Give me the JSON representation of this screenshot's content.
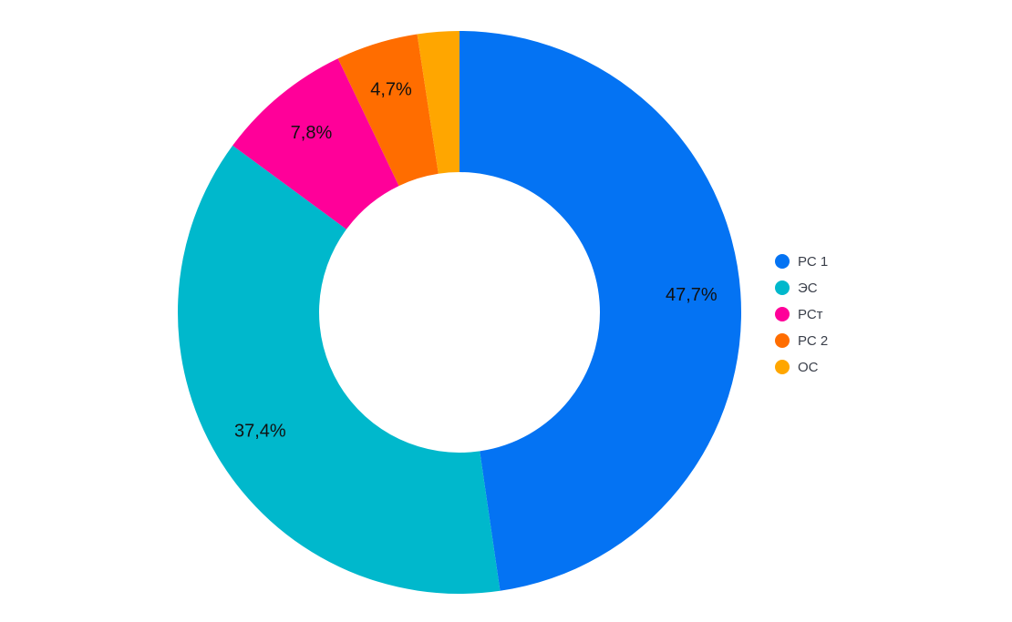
{
  "chart_data": {
    "type": "donut",
    "categories": [
      "РС 1",
      "ЭС",
      "РСт",
      "РС 2",
      "ОС"
    ],
    "values": [
      47.7,
      37.4,
      7.8,
      4.7,
      2.4
    ],
    "value_labels": [
      "47,7%",
      "37,4%",
      "7,8%",
      "4,7%",
      null
    ],
    "colors": [
      "#0473f3",
      "#00b8cc",
      "#ff0099",
      "#ff6d00",
      "#ffa600"
    ],
    "legend": "right"
  }
}
